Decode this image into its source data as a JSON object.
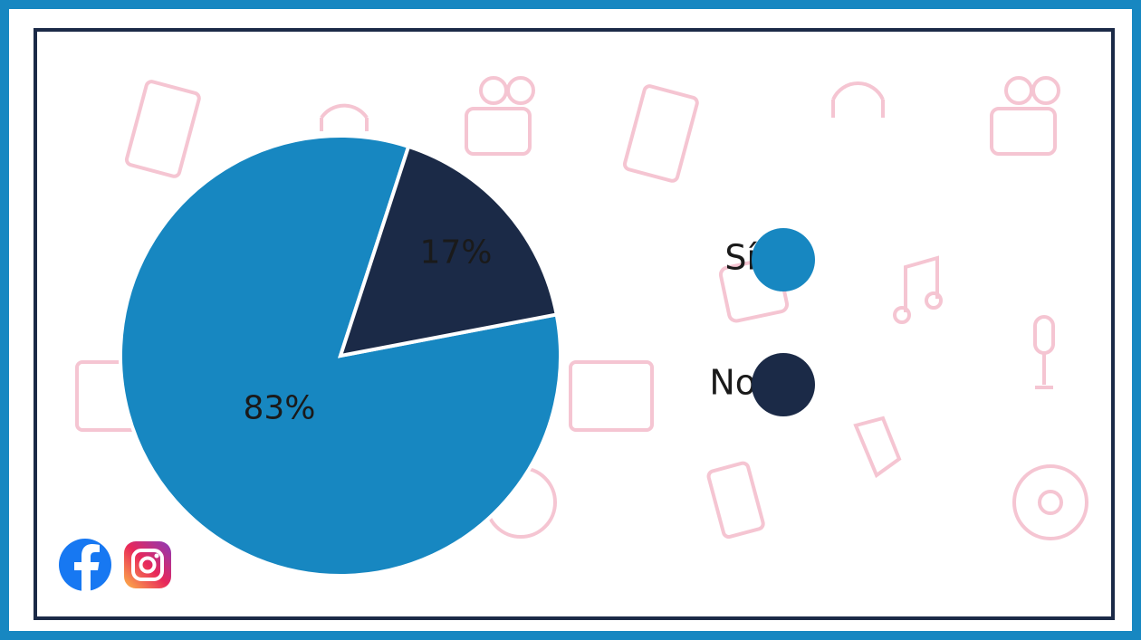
{
  "chart_data": {
    "type": "pie",
    "categories": [
      "Sí",
      "No"
    ],
    "values": [
      83,
      17
    ],
    "value_labels": [
      "83%",
      "17%"
    ],
    "colors": [
      "#1787c1",
      "#1b2a47"
    ],
    "legend": "right"
  }
}
